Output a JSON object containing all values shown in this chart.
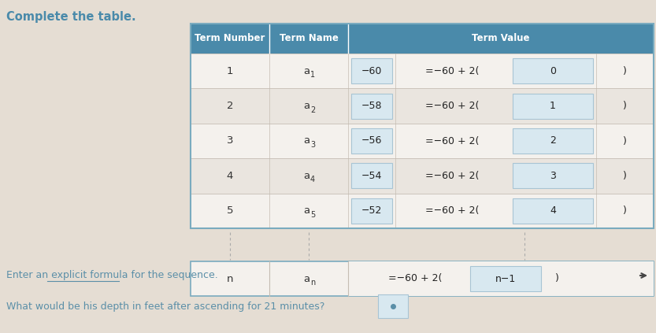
{
  "bg_color": "#e5ddd3",
  "title": "Complete the table.",
  "title_color": "#4a8aaa",
  "title_fontsize": 10.5,
  "header_bg": "#4a8aaa",
  "header_text_color": "#ffffff",
  "row_bg_even": "#f4f1ed",
  "row_bg_odd": "#eae5df",
  "cell_input_bg": "#d8e8f0",
  "cell_input_border": "#a8c4d4",
  "rows": [
    {
      "num": "1",
      "value": "−60",
      "formula": "=−60 + 2(",
      "input": "0"
    },
    {
      "num": "2",
      "value": "−58",
      "formula": "=−60 + 2(",
      "input": "1"
    },
    {
      "num": "3",
      "value": "−56",
      "formula": "=−60 + 2(",
      "input": "2"
    },
    {
      "num": "4",
      "value": "−54",
      "formula": "=−60 + 2(",
      "input": "3"
    },
    {
      "num": "5",
      "value": "−52",
      "formula": "=−60 + 2(",
      "input": "4"
    }
  ],
  "subscripts": [
    "1",
    "2",
    "3",
    "4",
    "5"
  ],
  "formula_num": "n",
  "formula_sub": "n",
  "formula_formula": "=−60 + 2(",
  "formula_input": "n−1",
  "question1": "Enter an explicit formula for the sequence.",
  "question2": "What would be his depth in feet after ascending for 21 minutes?",
  "q_color": "#5b8fa8",
  "underline_color": "#5b8fa8"
}
